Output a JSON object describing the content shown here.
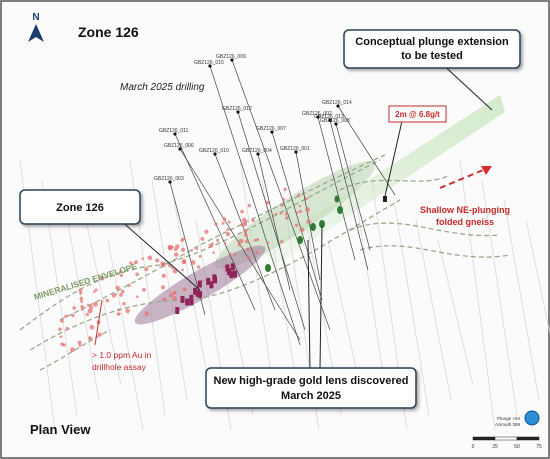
{
  "header": {
    "title": "Zone 126",
    "north": "N",
    "subtitle": "Plan View"
  },
  "annotations": {
    "drilling": "March 2025 drilling",
    "envelope": "MINERALISED ENVELOPE",
    "gneiss": [
      "Shallow NE-plunging",
      "folded gneiss"
    ],
    "assay": [
      "> 1.0 ppm Au in",
      "drillhole assay"
    ],
    "intercept": "2m @ 6.8g/t"
  },
  "callouts": {
    "plunge": [
      "Conceptual plunge extension",
      "to be tested"
    ],
    "zone": "Zone 126",
    "lens": [
      "New high-grade gold lens discovered",
      "March 2025"
    ]
  },
  "drillholes": [
    "GBZ126_015",
    "GBZ126_009",
    "GBZ126_012",
    "GBZ126_007",
    "GBZ126_014",
    "GBZ126_002",
    "GBZ126_013",
    "GBZ126_008",
    "GBZ126_011",
    "GBZ126_006",
    "GBZ126_010",
    "GBZ126_004",
    "GBZ126_001",
    "GBZ126_003"
  ],
  "scale": {
    "ticks": [
      "0",
      "25",
      "50",
      "75"
    ],
    "orientation": [
      "Plunge +64",
      "Azimuth 359"
    ]
  }
}
